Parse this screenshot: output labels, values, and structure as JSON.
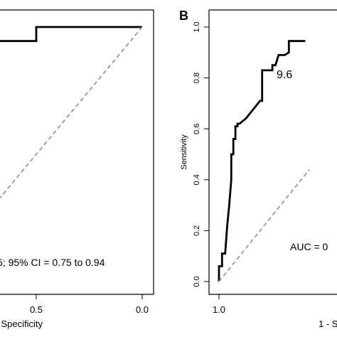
{
  "chart_data": [
    {
      "type": "line",
      "panel_label": "",
      "xlabel": "Specificity",
      "ylabel": "",
      "xlim": [
        1.0,
        0.0
      ],
      "ylim": [
        0.0,
        1.0
      ],
      "x_reversed": true,
      "x_ticks": [
        {
          "value": 0.5,
          "label": "0.5"
        },
        {
          "value": 0.0,
          "label": "0.0"
        }
      ],
      "annotations": [
        {
          "text": "5; 95% CI = 0.75 to 0.94",
          "x": 0.82,
          "y": 0.16
        }
      ],
      "series": [
        {
          "name": "",
          "line_style": "solid",
          "color": "#000000",
          "x": [
            0.775,
            0.5,
            0.5,
            0.0
          ],
          "y": [
            0.945,
            0.945,
            1.0,
            1.0
          ]
        },
        {
          "name": "",
          "line_style": "dashed",
          "color": "#999999",
          "x": [
            1.0,
            0.0
          ],
          "y": [
            0.0,
            1.0
          ]
        }
      ]
    },
    {
      "type": "line",
      "panel_label": "B",
      "xlabel": "1 - S",
      "ylabel": "Sensitivity",
      "xlim": [
        1.0,
        0.0
      ],
      "ylim": [
        0.0,
        1.0
      ],
      "x_reversed": true,
      "x_ticks": [
        {
          "value": 1.0,
          "label": "1.0"
        }
      ],
      "y_ticks": [
        {
          "value": 0.0,
          "label": "0.0"
        },
        {
          "value": 0.2,
          "label": "0.2"
        },
        {
          "value": 0.4,
          "label": "0.4"
        },
        {
          "value": 0.6,
          "label": "0.6"
        },
        {
          "value": 0.8,
          "label": "0.8"
        },
        {
          "value": 1.0,
          "label": "1.0"
        }
      ],
      "annotations": [
        {
          "text": "9.6",
          "x": 0.6,
          "y": 0.8
        },
        {
          "text": "AUC = 0",
          "x": 0.43,
          "y": 0.14
        }
      ],
      "series": [
        {
          "name": "",
          "line_style": "solid",
          "color": "#000000",
          "x": [
            1.0,
            1.0,
            0.985,
            0.985,
            0.97,
            0.96,
            0.95,
            0.94,
            0.94,
            0.93,
            0.93,
            0.92,
            0.92,
            0.91,
            0.91,
            0.9,
            0.87,
            0.85,
            0.82,
            0.8,
            0.79,
            0.79,
            0.76,
            0.74,
            0.74,
            0.725,
            0.71,
            0.71,
            0.68,
            0.66,
            0.66,
            0.58
          ],
          "y": [
            0.0,
            0.06,
            0.06,
            0.11,
            0.11,
            0.22,
            0.3,
            0.4,
            0.5,
            0.5,
            0.56,
            0.56,
            0.61,
            0.61,
            0.62,
            0.62,
            0.64,
            0.66,
            0.69,
            0.71,
            0.71,
            0.83,
            0.83,
            0.83,
            0.85,
            0.85,
            0.89,
            0.89,
            0.89,
            0.9,
            0.945,
            0.945
          ]
        },
        {
          "name": "",
          "line_style": "dashed",
          "color": "#999999",
          "x": [
            1.0,
            0.56
          ],
          "y": [
            0.0,
            0.44
          ]
        }
      ]
    }
  ]
}
